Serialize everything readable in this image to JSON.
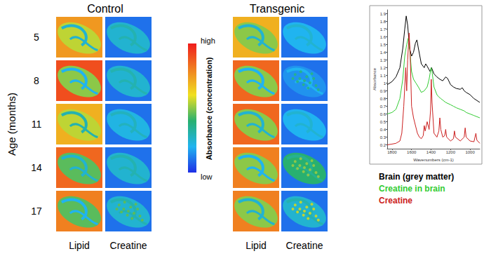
{
  "rows": {
    "title": "Age (months)",
    "ages": [
      5,
      8,
      11,
      14,
      17
    ]
  },
  "panels": [
    {
      "title": "Control",
      "columns": [
        {
          "label": "Lipid",
          "tiles": [
            {
              "background": 0.75,
              "tissue": 0.55,
              "band": 0.25
            },
            {
              "background": 0.9,
              "tissue": 0.5,
              "band": 0.2
            },
            {
              "background": 0.7,
              "tissue": 0.55,
              "band": 0.3
            },
            {
              "background": 0.85,
              "tissue": 0.45,
              "band": 0.25
            },
            {
              "background": 0.8,
              "tissue": 0.45,
              "band": 0.2
            }
          ]
        },
        {
          "label": "Creatine",
          "tiles": [
            {
              "background": 0.1,
              "tissue": 0.25,
              "band": 0.3
            },
            {
              "background": 0.1,
              "tissue": 0.25,
              "band": 0.3
            },
            {
              "background": 0.1,
              "tissue": 0.22,
              "band": 0.28
            },
            {
              "background": 0.1,
              "tissue": 0.25,
              "band": 0.3
            },
            {
              "background": 0.1,
              "tissue": 0.25,
              "band": 0.3,
              "deposits": 0.45
            }
          ]
        }
      ]
    },
    {
      "title": "Transgenic",
      "columns": [
        {
          "label": "Lipid",
          "tiles": [
            {
              "background": 0.7,
              "tissue": 0.5,
              "band": 0.25
            },
            {
              "background": 0.85,
              "tissue": 0.5,
              "band": 0.2
            },
            {
              "background": 0.85,
              "tissue": 0.5,
              "band": 0.25
            },
            {
              "background": 0.8,
              "tissue": 0.5,
              "band": 0.2
            },
            {
              "background": 0.8,
              "tissue": 0.5,
              "band": 0.25
            }
          ]
        },
        {
          "label": "Creatine",
          "tiles": [
            {
              "background": 0.1,
              "tissue": 0.2,
              "band": 0.25
            },
            {
              "background": 0.1,
              "tissue": 0.15,
              "band": 0.2,
              "deposits": 0.35
            },
            {
              "background": 0.1,
              "tissue": 0.2,
              "band": 0.25
            },
            {
              "background": 0.1,
              "tissue": 0.4,
              "band": 0.35,
              "deposits": 0.5
            },
            {
              "background": 0.1,
              "tissue": 0.25,
              "band": 0.3,
              "deposits": 0.55
            }
          ]
        }
      ]
    }
  ],
  "color_bar": {
    "title": "Absorbance (concentration)",
    "high": "high",
    "low": "low",
    "range": [
      0,
      1
    ],
    "colors": [
      "#1e2ee6",
      "#20b4f0",
      "#28b070",
      "#f0e020",
      "#f08020",
      "#f01c1c"
    ]
  },
  "chart_data": {
    "type": "line",
    "x_label": "Wavenumbers (cm-1)",
    "y_label": "Absorbance",
    "xlim": [
      1850,
      900
    ],
    "xticks": [
      1800,
      1600,
      1400,
      1200,
      1000
    ],
    "ylim": [
      0.15,
      1.95
    ],
    "yticks": [
      0.2,
      0.3,
      0.4,
      0.5,
      0.6,
      0.7,
      0.8,
      0.9,
      1,
      1.1,
      1.2,
      1.3,
      1.4,
      1.5,
      1.6,
      1.7,
      1.8,
      1.9
    ],
    "grid": false,
    "legend": "bottom",
    "series": [
      {
        "name": "Brain (grey matter)",
        "color": "#000000",
        "x": [
          1850,
          1800,
          1760,
          1720,
          1690,
          1670,
          1655,
          1640,
          1620,
          1600,
          1580,
          1560,
          1545,
          1530,
          1500,
          1470,
          1455,
          1440,
          1410,
          1395,
          1370,
          1340,
          1310,
          1280,
          1250,
          1230,
          1200,
          1170,
          1140,
          1100,
          1080,
          1060,
          1040,
          1000,
          960,
          900
        ],
        "values": [
          0.98,
          1.02,
          1.08,
          1.2,
          1.45,
          1.7,
          1.87,
          1.75,
          1.45,
          1.35,
          1.4,
          1.52,
          1.56,
          1.45,
          1.25,
          1.2,
          1.25,
          1.22,
          1.15,
          1.2,
          1.12,
          1.08,
          1.05,
          1.03,
          1.08,
          1.06,
          0.98,
          0.95,
          0.93,
          0.92,
          0.94,
          0.9,
          0.88,
          0.85,
          0.8,
          0.75
        ]
      },
      {
        "name": "Creatine in brain",
        "color": "#33cc33",
        "x": [
          1850,
          1800,
          1760,
          1720,
          1690,
          1670,
          1650,
          1635,
          1620,
          1600,
          1580,
          1555,
          1530,
          1500,
          1470,
          1440,
          1420,
          1400,
          1390,
          1370,
          1340,
          1320,
          1300,
          1280,
          1250,
          1200,
          1170,
          1140,
          1100,
          1060,
          1040,
          1000,
          960,
          900
        ],
        "values": [
          0.6,
          0.62,
          0.66,
          0.8,
          1.05,
          1.35,
          1.5,
          1.58,
          1.45,
          1.15,
          1.05,
          1.0,
          0.95,
          0.88,
          0.9,
          0.95,
          1.05,
          1.2,
          1.15,
          0.95,
          0.85,
          0.82,
          0.8,
          0.78,
          0.75,
          0.72,
          0.7,
          0.68,
          0.66,
          0.64,
          0.62,
          0.6,
          0.58,
          0.55
        ]
      },
      {
        "name": "Creatine",
        "color": "#cc2020",
        "x": [
          1850,
          1800,
          1760,
          1720,
          1700,
          1680,
          1660,
          1650,
          1640,
          1625,
          1615,
          1600,
          1580,
          1560,
          1540,
          1520,
          1500,
          1480,
          1470,
          1460,
          1440,
          1420,
          1405,
          1398,
          1390,
          1370,
          1340,
          1320,
          1310,
          1300,
          1280,
          1260,
          1250,
          1240,
          1200,
          1170,
          1160,
          1150,
          1100,
          1060,
          1050,
          1040,
          1000,
          960,
          940,
          930,
          900
        ],
        "values": [
          0.2,
          0.21,
          0.22,
          0.25,
          0.35,
          0.7,
          1.2,
          0.9,
          1.3,
          1.65,
          1.4,
          0.7,
          0.55,
          0.45,
          0.35,
          0.3,
          0.28,
          0.32,
          0.45,
          0.38,
          0.5,
          0.4,
          0.65,
          1.05,
          0.75,
          0.35,
          0.3,
          0.38,
          0.55,
          0.4,
          0.3,
          0.32,
          0.4,
          0.3,
          0.25,
          0.28,
          0.38,
          0.3,
          0.25,
          0.3,
          0.42,
          0.3,
          0.25,
          0.24,
          0.35,
          0.26,
          0.22
        ]
      }
    ]
  }
}
